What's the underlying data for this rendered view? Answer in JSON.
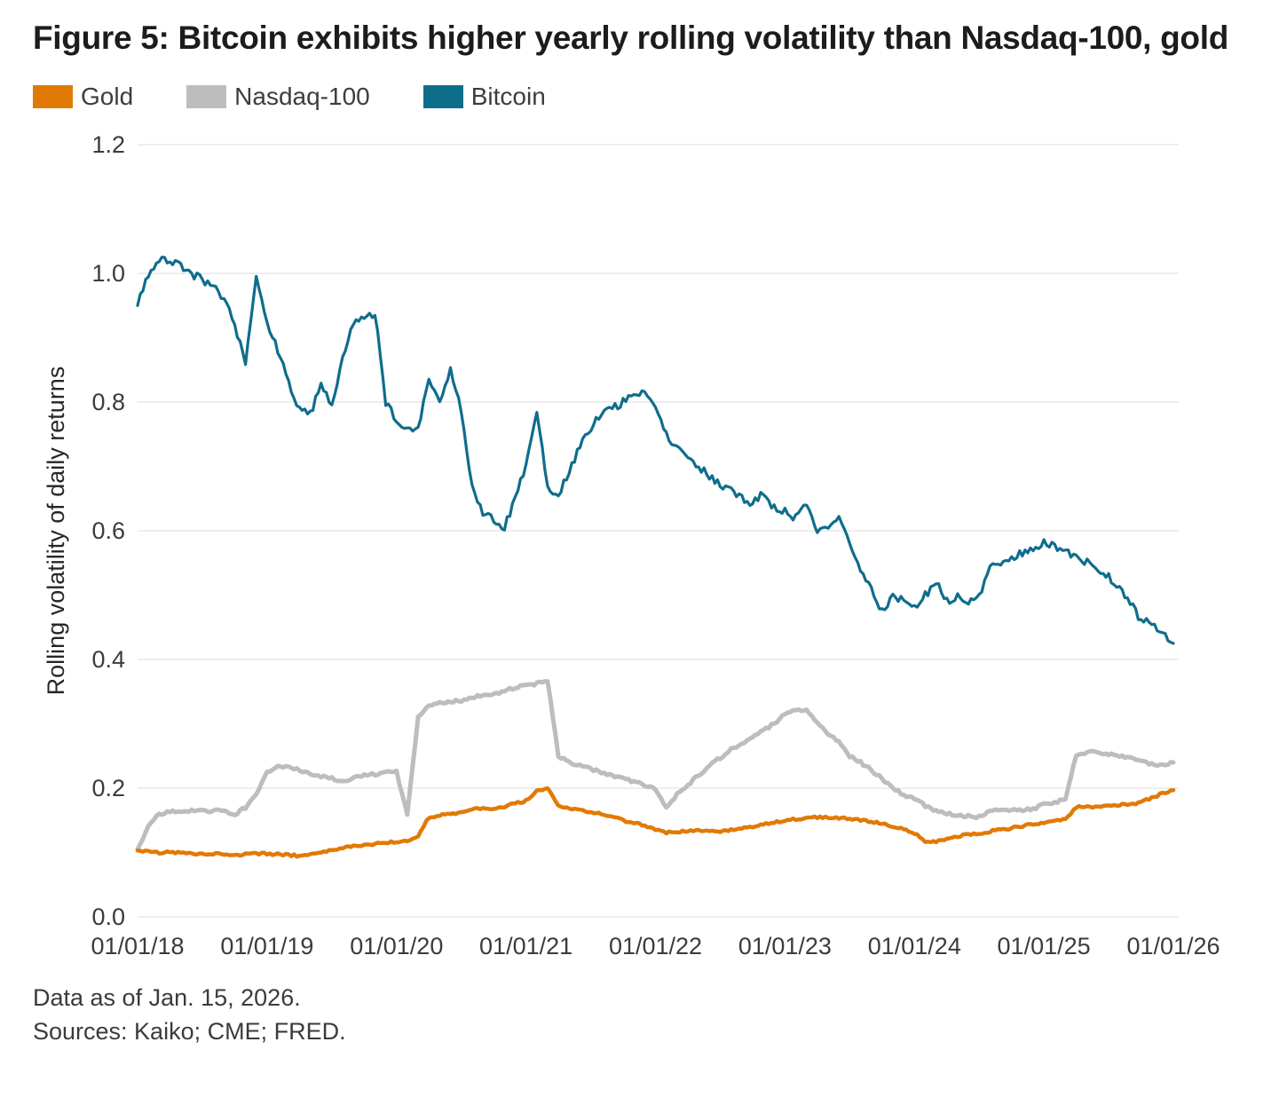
{
  "title": "Figure 5: Bitcoin exhibits higher yearly rolling volatility than Nasdaq-100, gold",
  "legend": [
    {
      "label": "Gold",
      "color": "#e17a05"
    },
    {
      "label": "Nasdaq-100",
      "color": "#bdbdbd"
    },
    {
      "label": "Bitcoin",
      "color": "#0f6d8c"
    }
  ],
  "footer": {
    "line1": "Data as of Jan. 15, 2026.",
    "line2": "Sources: Kaiko; CME; FRED."
  },
  "chart_data": {
    "type": "line",
    "title": "Figure 5: Bitcoin exhibits higher yearly rolling volatility than Nasdaq-100, gold",
    "xlabel": "",
    "ylabel": "Rolling volatility of daily returns",
    "ylim": [
      0,
      1.2
    ],
    "yticks": [
      0,
      0.2,
      0.4,
      0.6,
      0.8,
      1.0,
      1.2
    ],
    "ytick_labels": [
      "0.0",
      "0.2",
      "0.4",
      "0.6",
      "0.8",
      "1.0",
      "1.2"
    ],
    "xtick_labels": [
      "01/01/18",
      "01/01/19",
      "01/01/20",
      "01/01/21",
      "01/01/22",
      "01/01/23",
      "01/01/24",
      "01/01/25",
      "01/01/26"
    ],
    "xtick_months": [
      0,
      12,
      24,
      36,
      48,
      60,
      72,
      84,
      96
    ],
    "x_unit": "months since 2018-01, monthly samples (estimated from plot)",
    "grid": "horizontal",
    "legend_position": "top-left",
    "series": [
      {
        "name": "Gold",
        "color": "#e17a05",
        "values": [
          0.103,
          0.101,
          0.1,
          0.1,
          0.1,
          0.099,
          0.098,
          0.098,
          0.097,
          0.096,
          0.097,
          0.098,
          0.098,
          0.097,
          0.096,
          0.095,
          0.096,
          0.1,
          0.103,
          0.107,
          0.11,
          0.112,
          0.113,
          0.115,
          0.117,
          0.118,
          0.125,
          0.155,
          0.158,
          0.16,
          0.161,
          0.166,
          0.17,
          0.168,
          0.171,
          0.176,
          0.18,
          0.195,
          0.2,
          0.172,
          0.168,
          0.165,
          0.163,
          0.16,
          0.155,
          0.15,
          0.146,
          0.142,
          0.136,
          0.131,
          0.132,
          0.134,
          0.134,
          0.133,
          0.132,
          0.135,
          0.137,
          0.14,
          0.144,
          0.147,
          0.15,
          0.152,
          0.153,
          0.155,
          0.155,
          0.154,
          0.152,
          0.15,
          0.148,
          0.145,
          0.14,
          0.136,
          0.13,
          0.118,
          0.117,
          0.121,
          0.125,
          0.128,
          0.13,
          0.133,
          0.135,
          0.138,
          0.141,
          0.144,
          0.147,
          0.15,
          0.152,
          0.17,
          0.172,
          0.17,
          0.172,
          0.174,
          0.175,
          0.178,
          0.185,
          0.192,
          0.197
        ]
      },
      {
        "name": "Nasdaq-100",
        "color": "#bdbdbd",
        "values": [
          0.105,
          0.14,
          0.16,
          0.163,
          0.164,
          0.165,
          0.165,
          0.165,
          0.165,
          0.158,
          0.17,
          0.19,
          0.225,
          0.235,
          0.232,
          0.228,
          0.222,
          0.218,
          0.215,
          0.21,
          0.215,
          0.22,
          0.222,
          0.225,
          0.225,
          0.16,
          0.31,
          0.33,
          0.332,
          0.335,
          0.335,
          0.34,
          0.345,
          0.347,
          0.35,
          0.357,
          0.36,
          0.362,
          0.367,
          0.25,
          0.24,
          0.235,
          0.23,
          0.225,
          0.22,
          0.215,
          0.21,
          0.205,
          0.198,
          0.168,
          0.19,
          0.205,
          0.22,
          0.235,
          0.247,
          0.26,
          0.27,
          0.28,
          0.29,
          0.3,
          0.315,
          0.322,
          0.32,
          0.3,
          0.285,
          0.272,
          0.25,
          0.24,
          0.228,
          0.215,
          0.2,
          0.19,
          0.183,
          0.173,
          0.165,
          0.16,
          0.158,
          0.157,
          0.155,
          0.166,
          0.168,
          0.166,
          0.165,
          0.168,
          0.175,
          0.178,
          0.182,
          0.252,
          0.256,
          0.255,
          0.253,
          0.25,
          0.246,
          0.242,
          0.238,
          0.235,
          0.24
        ]
      },
      {
        "name": "Bitcoin",
        "color": "#0f6d8c",
        "values": [
          0.95,
          1.0,
          1.02,
          1.02,
          1.01,
          1.0,
          0.99,
          0.98,
          0.96,
          0.92,
          0.86,
          0.99,
          0.92,
          0.88,
          0.83,
          0.79,
          0.78,
          0.83,
          0.79,
          0.87,
          0.92,
          0.93,
          0.94,
          0.8,
          0.77,
          0.755,
          0.76,
          0.84,
          0.8,
          0.85,
          0.79,
          0.67,
          0.63,
          0.615,
          0.605,
          0.65,
          0.7,
          0.78,
          0.67,
          0.655,
          0.69,
          0.73,
          0.76,
          0.78,
          0.79,
          0.8,
          0.815,
          0.81,
          0.79,
          0.75,
          0.73,
          0.715,
          0.7,
          0.685,
          0.67,
          0.665,
          0.65,
          0.64,
          0.66,
          0.635,
          0.63,
          0.62,
          0.64,
          0.6,
          0.6,
          0.62,
          0.58,
          0.54,
          0.51,
          0.475,
          0.5,
          0.49,
          0.48,
          0.5,
          0.52,
          0.49,
          0.5,
          0.49,
          0.5,
          0.54,
          0.55,
          0.555,
          0.565,
          0.575,
          0.58,
          0.575,
          0.57,
          0.56,
          0.55,
          0.54,
          0.53,
          0.51,
          0.49,
          0.46,
          0.455,
          0.44,
          0.425
        ]
      }
    ]
  }
}
